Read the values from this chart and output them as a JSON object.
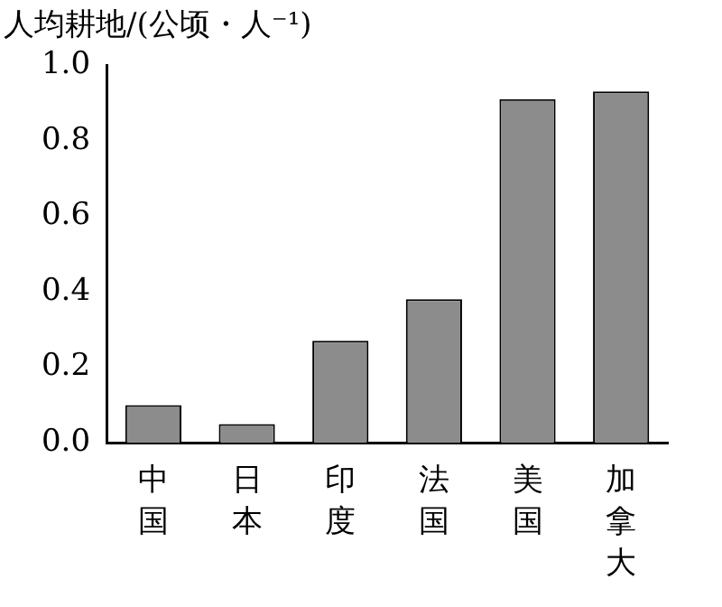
{
  "chart_data": {
    "type": "bar",
    "ylabel": "人均耕地/(公顷・人⁻¹)",
    "categories": [
      "中国",
      "日本",
      "印度",
      "法国",
      "美国",
      "加拿大"
    ],
    "values": [
      0.1,
      0.05,
      0.27,
      0.38,
      0.91,
      0.93
    ],
    "color": "#8c8c8c",
    "ylim": [
      0,
      1
    ],
    "yticks": [
      {
        "value": 0,
        "label": "0.0"
      },
      {
        "value": 0.2,
        "label": "0.2"
      },
      {
        "value": 0.4,
        "label": "0.4"
      },
      {
        "value": 0.6,
        "label": "0.6"
      },
      {
        "value": 0.8,
        "label": "0.8"
      },
      {
        "value": 1,
        "label": "1.0"
      }
    ],
    "grid": false,
    "legend": false
  }
}
